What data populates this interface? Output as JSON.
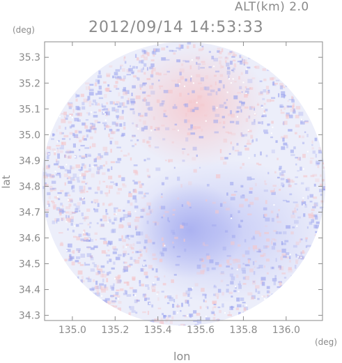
{
  "header": {
    "alt_label": "ALT(km)  2.0",
    "timestamp": "2012/09/14 14:53:33"
  },
  "axes": {
    "y_unit": "(deg)",
    "x_unit": "(deg)",
    "y_label": "lat",
    "x_label": "lon"
  },
  "chart_data": {
    "type": "heatmap",
    "title": "2012/09/14 14:53:33",
    "subtitle": "ALT(km)  2.0",
    "xlabel": "lon",
    "ylabel": "lat",
    "xlim": [
      134.87,
      136.17
    ],
    "ylim": [
      34.28,
      35.36
    ],
    "x_ticks": [
      135.0,
      135.2,
      135.4,
      135.6,
      135.8,
      136.0
    ],
    "x_tick_labels": [
      "135.0",
      "135.2",
      "135.4",
      "135.6",
      "135.8",
      "136.0"
    ],
    "y_ticks": [
      34.3,
      34.4,
      34.5,
      34.6,
      34.7,
      34.8,
      34.9,
      35.0,
      35.1,
      35.2,
      35.3
    ],
    "y_tick_labels": [
      "34.3",
      "34.4",
      "34.5",
      "34.6",
      "34.7",
      "34.8",
      "34.9",
      "35.0",
      "35.1",
      "35.2",
      "35.3"
    ],
    "grid": false,
    "coverage": {
      "center_lon": 135.52,
      "center_lat": 34.81,
      "radius_lat": 0.55
    },
    "regions": [
      {
        "tone": "positive",
        "lon_range": [
          135.3,
          135.85
        ],
        "lat_range": [
          34.92,
          35.3
        ]
      },
      {
        "tone": "negative",
        "lon_range": [
          135.3,
          136.1
        ],
        "lat_range": [
          34.4,
          34.85
        ]
      },
      {
        "tone": "noisy",
        "lon_range": [
          134.9,
          135.35
        ],
        "lat_range": [
          34.35,
          35.2
        ]
      }
    ],
    "colors": {
      "positive": "#f4c7cc",
      "negative": "#9ea6ee",
      "neutral": "#eceefa",
      "axis": "#8a8a8a"
    }
  }
}
